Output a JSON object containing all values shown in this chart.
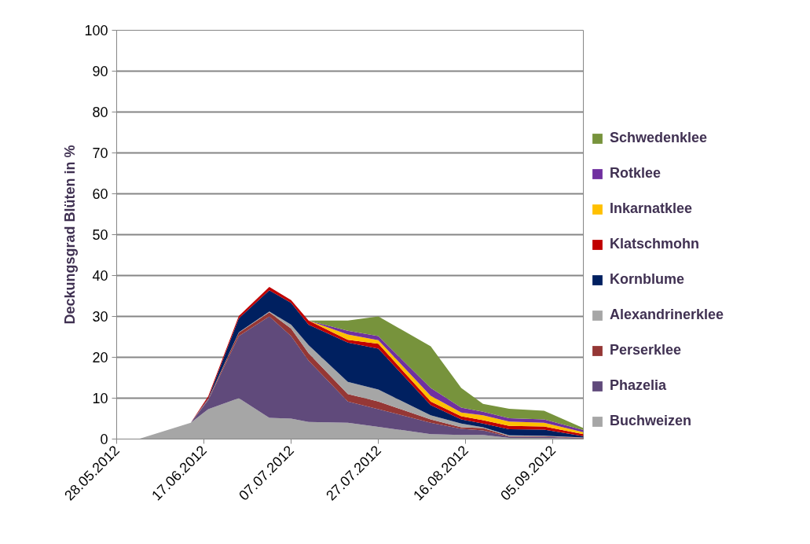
{
  "chart_data": {
    "type": "area",
    "stacked": true,
    "ylabel": "Deckungsgrad Blüten in %",
    "x": [
      "2012-06-02",
      "2012-06-14",
      "2012-06-18",
      "2012-06-25",
      "2012-07-02",
      "2012-07-07",
      "2012-07-11",
      "2012-07-20",
      "2012-07-27",
      "2012-08-08",
      "2012-08-15",
      "2012-08-20",
      "2012-08-26",
      "2012-09-03",
      "2012-09-12"
    ],
    "series": [
      {
        "name": "Buchweizen",
        "color": "#a6a6a6",
        "values": [
          0,
          4,
          7.3,
          10,
          5.2,
          5,
          4.2,
          4,
          3,
          1.2,
          1,
          1,
          0.3,
          0.3,
          0.1
        ]
      },
      {
        "name": "Phazelia",
        "color": "#604a7b",
        "values": [
          0,
          0,
          2.2,
          15.2,
          24.8,
          20.2,
          15,
          5.2,
          4.3,
          2.8,
          1.5,
          1.1,
          0.3,
          0.3,
          0.1
        ]
      },
      {
        "name": "Perserklee",
        "color": "#953735",
        "values": [
          0,
          0,
          0.2,
          0.8,
          1,
          1.8,
          1.8,
          1.8,
          1.9,
          0.8,
          0.4,
          0.6,
          0.1,
          0.1,
          0.1
        ]
      },
      {
        "name": "Alexandrinerklee",
        "color": "#a6a6a6",
        "values": [
          0,
          0,
          0.1,
          0.1,
          0.2,
          1,
          2,
          3,
          2.9,
          1,
          0.9,
          0.2,
          0.2,
          0.1,
          0.1
        ]
      },
      {
        "name": "Kornblume",
        "color": "#002060",
        "values": [
          0,
          0,
          0.2,
          3.4,
          5.2,
          5.3,
          5,
          9.6,
          10,
          2.5,
          1,
          0.9,
          1.5,
          1.5,
          0.3
        ]
      },
      {
        "name": "Klatschmohn",
        "color": "#c00000",
        "values": [
          0,
          0,
          0.5,
          0.6,
          0.8,
          0.7,
          1,
          0.7,
          1.2,
          0.9,
          0.8,
          0.8,
          0.8,
          0.8,
          0.5
        ]
      },
      {
        "name": "Inkarnatklee",
        "color": "#ffc000",
        "values": [
          null,
          null,
          null,
          null,
          null,
          null,
          0,
          1.3,
          0.9,
          1.4,
          0.9,
          1.2,
          1.1,
          0.9,
          0.5
        ]
      },
      {
        "name": "Rotklee",
        "color": "#7030a0",
        "values": [
          null,
          null,
          null,
          null,
          null,
          null,
          0,
          0.9,
          1,
          1.9,
          1.2,
          0.9,
          0.8,
          0.8,
          0.5
        ]
      },
      {
        "name": "Schwedenklee",
        "color": "#77933c",
        "values": [
          null,
          null,
          null,
          null,
          null,
          null,
          0,
          2.5,
          4.8,
          10.2,
          4.8,
          1.9,
          2.3,
          2.1,
          0.5
        ]
      }
    ],
    "xlim": [
      "2012-05-28",
      "2012-09-12"
    ],
    "xticks": [
      {
        "value": "2012-05-28",
        "label": "28.05.2012"
      },
      {
        "value": "2012-06-17",
        "label": "17.06.2012"
      },
      {
        "value": "2012-07-07",
        "label": "07.07.2012"
      },
      {
        "value": "2012-07-27",
        "label": "27.07.2012"
      },
      {
        "value": "2012-08-16",
        "label": "16.08.2012"
      },
      {
        "value": "2012-09-05",
        "label": "05.09.2012"
      }
    ],
    "ylim": [
      0,
      100
    ],
    "yticks": [
      0,
      10,
      20,
      30,
      40,
      50,
      60,
      70,
      80,
      90,
      100
    ],
    "grid": "y",
    "legend": "right"
  }
}
